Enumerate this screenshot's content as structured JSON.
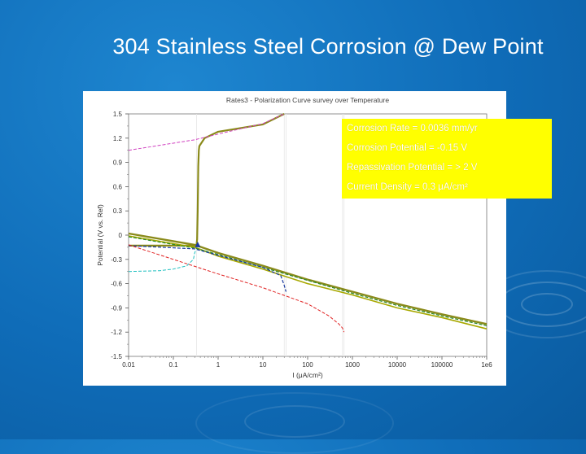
{
  "slide": {
    "title": "304 Stainless Steel Corrosion @ Dew Point"
  },
  "info_box": {
    "lines": [
      "Corrosion Rate = 0.0036 mm/yr",
      "Corrosion Potential = -0.15 V",
      "Repassivation Potential = > 2 V",
      "Current Density = 0.3 μA/cm²"
    ],
    "background": "#ffff00"
  },
  "chart_data": {
    "type": "line",
    "title": "Rates3 - Polarization Curve survey over Temperature",
    "xlabel": "I (μA/cm²)",
    "ylabel": "Potential (V vs. Ref)",
    "x_scale": "log",
    "xlim": [
      0.01,
      1000000
    ],
    "ylim": [
      -1.5,
      1.5
    ],
    "x_ticks": [
      "0.01",
      "0.1",
      "1",
      "10",
      "100",
      "1000",
      "10000",
      "100000",
      "1e6"
    ],
    "y_ticks": [
      "1.5",
      "1.2",
      "0.9",
      "0.6",
      "0.3",
      "0",
      "-0.3",
      "-0.6",
      "-0.9",
      "-1.2",
      "-1.5"
    ],
    "grid": false,
    "series": [
      {
        "color": "#8a8a1a",
        "x": [
          0.01,
          0.3,
          0.33,
          0.34,
          0.35,
          0.36,
          0.37,
          0.38,
          0.4,
          0.5,
          1,
          10,
          30
        ],
        "y": [
          -0.13,
          -0.13,
          -0.12,
          -0.05,
          0.3,
          0.85,
          1.05,
          1.1,
          1.12,
          1.2,
          1.28,
          1.37,
          1.5
        ]
      },
      {
        "color": "#8a8a1a",
        "x": [
          0.01,
          0.3,
          1,
          10,
          100,
          1000,
          10000,
          100000,
          1000000
        ],
        "y": [
          0.02,
          -0.12,
          -0.22,
          -0.38,
          -0.55,
          -0.7,
          -0.85,
          -0.98,
          -1.1
        ]
      },
      {
        "color": "#a8a800",
        "x": [
          0.01,
          0.3,
          1,
          10,
          100,
          1000,
          10000,
          100000,
          1000000
        ],
        "y": [
          -0.01,
          -0.15,
          -0.26,
          -0.42,
          -0.6,
          -0.74,
          -0.9,
          -1.02,
          -1.16
        ]
      },
      {
        "color": "#2a8a2a",
        "x": [
          0.01,
          0.3,
          1,
          10,
          100,
          1000,
          10000,
          100000,
          1000000
        ],
        "y": [
          -0.02,
          -0.16,
          -0.24,
          -0.4,
          -0.56,
          -0.72,
          -0.87,
          -1.0,
          -1.12
        ]
      },
      {
        "color": "#d040c0",
        "x": [
          0.01,
          0.3,
          1,
          10,
          30
        ],
        "y": [
          1.05,
          1.18,
          1.25,
          1.38,
          1.5
        ]
      },
      {
        "color": "#1a3aa0",
        "x": [
          0.01,
          0.3,
          1,
          10,
          25,
          30,
          32,
          33
        ],
        "y": [
          -0.13,
          -0.17,
          -0.25,
          -0.4,
          -0.5,
          -0.62,
          -0.68,
          -0.7
        ]
      },
      {
        "color": "#20c0c0",
        "x": [
          0.01,
          0.05,
          0.1,
          0.2,
          0.28,
          0.3,
          0.32
        ],
        "y": [
          -0.45,
          -0.44,
          -0.42,
          -0.38,
          -0.3,
          -0.22,
          -0.18
        ]
      },
      {
        "color": "#e02020",
        "x": [
          0.01,
          0.1,
          1,
          10,
          100,
          300,
          500,
          600,
          650
        ],
        "y": [
          -0.12,
          -0.3,
          -0.48,
          -0.65,
          -0.85,
          -1.0,
          -1.1,
          -1.15,
          -1.2
        ]
      }
    ],
    "marker": {
      "x": 0.35,
      "y": -0.13,
      "color": "#1a3aa0"
    }
  }
}
